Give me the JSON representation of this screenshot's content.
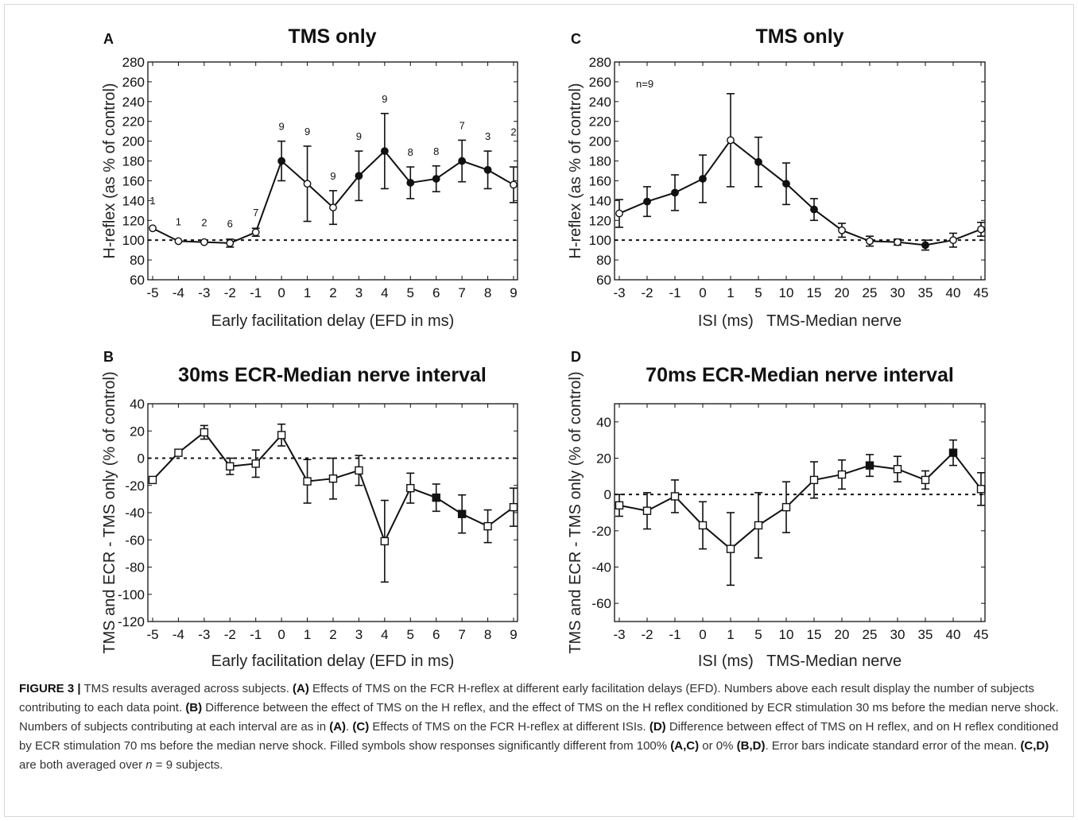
{
  "chart_data": [
    {
      "id": "A",
      "type": "line",
      "letter": "A",
      "title": "TMS only",
      "xlabel": "Early facilitation delay (EFD in ms)",
      "ylabel": "H-reflex (as % of control)",
      "categories": [
        "-5",
        "-4",
        "-3",
        "-2",
        "-1",
        "0",
        "1",
        "2",
        "3",
        "4",
        "5",
        "6",
        "7",
        "8",
        "9"
      ],
      "ylim": [
        60,
        280
      ],
      "yticks": [
        60,
        80,
        100,
        120,
        140,
        160,
        180,
        200,
        220,
        240,
        260,
        280
      ],
      "reference_line": 100,
      "marker": "circle",
      "values": [
        112,
        99,
        98,
        97,
        108,
        180,
        157,
        133,
        165,
        190,
        158,
        162,
        180,
        171,
        156
      ],
      "errors": [
        0,
        0,
        0,
        4,
        4,
        20,
        38,
        17,
        25,
        38,
        16,
        13,
        21,
        19,
        18
      ],
      "significant": [
        false,
        false,
        false,
        false,
        false,
        true,
        false,
        false,
        true,
        true,
        true,
        true,
        true,
        true,
        false
      ],
      "subject_counts": [
        "1",
        "1",
        "2",
        "6",
        "7",
        "9",
        "9",
        "9",
        "9",
        "9",
        "8",
        "8",
        "7",
        "3",
        "2"
      ]
    },
    {
      "id": "B",
      "type": "line",
      "letter": "B",
      "title": "30ms ECR-Median nerve interval",
      "xlabel": "Early facilitation delay (EFD in ms)",
      "ylabel": "TMS and ECR - TMS only (% of control)",
      "categories": [
        "-5",
        "-4",
        "-3",
        "-2",
        "-1",
        "0",
        "1",
        "2",
        "3",
        "4",
        "5",
        "6",
        "7",
        "8",
        "9"
      ],
      "ylim": [
        -120,
        40
      ],
      "yticks": [
        -120,
        -100,
        -80,
        -60,
        -40,
        -20,
        0,
        20,
        40
      ],
      "reference_line": 0,
      "marker": "square",
      "values": [
        -16,
        4,
        19,
        -6,
        -4,
        17,
        -17,
        -15,
        -9,
        -61,
        -22,
        -29,
        -41,
        -50,
        -36
      ],
      "errors": [
        0,
        0,
        5,
        6,
        10,
        8,
        16,
        15,
        11,
        30,
        11,
        10,
        14,
        12,
        14
      ],
      "significant": [
        false,
        false,
        false,
        false,
        false,
        false,
        false,
        false,
        false,
        false,
        false,
        true,
        true,
        false,
        false
      ]
    },
    {
      "id": "C",
      "type": "line",
      "letter": "C",
      "title": "TMS only",
      "xlabel": "ISI (ms)   TMS-Median nerve",
      "ylabel": "H-reflex (as % of control)",
      "annotation": "n=9",
      "categories": [
        "-3",
        "-2",
        "-1",
        "0",
        "1",
        "5",
        "10",
        "15",
        "20",
        "25",
        "30",
        "35",
        "40",
        "45"
      ],
      "ylim": [
        60,
        280
      ],
      "yticks": [
        60,
        80,
        100,
        120,
        140,
        160,
        180,
        200,
        220,
        240,
        260,
        280
      ],
      "reference_line": 100,
      "marker": "circle",
      "values": [
        127,
        139,
        148,
        162,
        201,
        179,
        157,
        131,
        110,
        99,
        98,
        95,
        100,
        111
      ],
      "errors": [
        14,
        15,
        18,
        24,
        47,
        25,
        21,
        11,
        7,
        5,
        3,
        5,
        7,
        7
      ],
      "significant": [
        false,
        true,
        true,
        true,
        false,
        true,
        true,
        true,
        false,
        false,
        false,
        true,
        false,
        false
      ]
    },
    {
      "id": "D",
      "type": "line",
      "letter": "D",
      "title": "70ms ECR-Median nerve interval",
      "xlabel": "ISI (ms)   TMS-Median nerve",
      "ylabel": "TMS and ECR - TMS only (% of control)",
      "categories": [
        "-3",
        "-2",
        "-1",
        "0",
        "1",
        "5",
        "10",
        "15",
        "20",
        "25",
        "30",
        "35",
        "40",
        "45"
      ],
      "ylim": [
        -70,
        50
      ],
      "yticks": [
        -60,
        -40,
        -20,
        0,
        20,
        40
      ],
      "reference_line": 0,
      "marker": "square",
      "values": [
        -6,
        -9,
        -1,
        -17,
        -30,
        -17,
        -7,
        8,
        11,
        16,
        14,
        8,
        23,
        3
      ],
      "errors": [
        6,
        10,
        9,
        13,
        20,
        18,
        14,
        10,
        8,
        6,
        7,
        5,
        7,
        9
      ],
      "significant": [
        false,
        false,
        false,
        false,
        false,
        false,
        false,
        false,
        false,
        true,
        false,
        false,
        true,
        false
      ]
    }
  ],
  "caption": {
    "figure_label": "FIGURE 3 |",
    "segments": [
      {
        "text": " TMS results averaged across subjects. ",
        "bold": false
      },
      {
        "text": "(A)",
        "bold": true
      },
      {
        "text": " Effects of TMS on the FCR H-reflex at different early facilitation delays (EFD). Numbers above each result display the number of subjects contributing to each data point. ",
        "bold": false
      },
      {
        "text": "(B)",
        "bold": true
      },
      {
        "text": " Difference between the effect of TMS on the H reflex, and the effect of TMS on the H reflex conditioned by ECR stimulation 30 ms before the median nerve shock. Numbers of subjects contributing at each interval are as in ",
        "bold": false
      },
      {
        "text": "(A)",
        "bold": true
      },
      {
        "text": ". ",
        "bold": false
      },
      {
        "text": "(C)",
        "bold": true
      },
      {
        "text": " Effects of TMS on the FCR H-reflex at different ISIs. ",
        "bold": false
      },
      {
        "text": "(D)",
        "bold": true
      },
      {
        "text": " Difference between effect of TMS on H reflex, and on H reflex conditioned by ECR stimulation 70 ms before the median nerve shock. Filled symbols show responses significantly different from 100% ",
        "bold": false
      },
      {
        "text": "(A,C)",
        "bold": true
      },
      {
        "text": " or 0% ",
        "bold": false
      },
      {
        "text": "(B,D)",
        "bold": true
      },
      {
        "text": ". Error bars indicate standard error of the mean. ",
        "bold": false
      },
      {
        "text": "(C,D)",
        "bold": true
      },
      {
        "text": " are both averaged over ",
        "bold": false
      },
      {
        "text": "n",
        "bold": false,
        "italic": true
      },
      {
        "text": " = 9 subjects.",
        "bold": false
      }
    ]
  }
}
